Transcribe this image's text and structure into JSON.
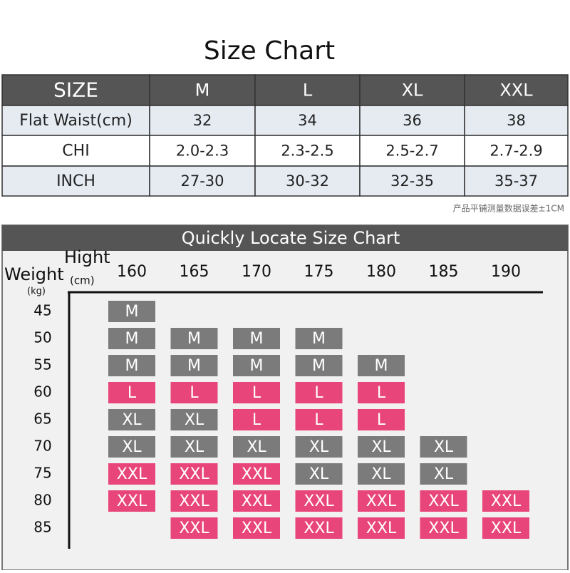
{
  "title": "Size Chart",
  "table": {
    "header": [
      "SIZE",
      "M",
      "L",
      "XL",
      "XXL"
    ],
    "rows": [
      [
        "Flat Waist(cm)",
        "32",
        "34",
        "36",
        "38"
      ],
      [
        "CHI",
        "2.0-2.3",
        "2.3-2.5",
        "2.5-2.7",
        "2.7-2.9"
      ],
      [
        "INCH",
        "27-30",
        "30-32",
        "32-35",
        "35-37"
      ]
    ]
  },
  "note": "产品平铺测量数据误差±1CM",
  "locator": {
    "title": "Quickly Locate Size Chart",
    "height_label": "Hight",
    "height_unit": "(cm)",
    "weight_label": "Weight",
    "weight_unit": "(kg)",
    "heights": [
      "160",
      "165",
      "170",
      "175",
      "180",
      "185",
      "190"
    ],
    "weights": [
      "45",
      "50",
      "55",
      "60",
      "65",
      "70",
      "75",
      "80",
      "85"
    ],
    "cells": [
      [
        "M",
        null,
        null,
        null,
        null,
        null,
        null
      ],
      [
        "M",
        "M",
        "M",
        "M",
        null,
        null,
        null
      ],
      [
        "M",
        "M",
        "M",
        "M",
        "M",
        null,
        null
      ],
      [
        "L",
        "L",
        "L",
        "L",
        "L",
        null,
        null
      ],
      [
        "XL",
        "XL",
        "L",
        "L",
        "L",
        null,
        null
      ],
      [
        "XL",
        "XL",
        "XL",
        "XL",
        "XL",
        "XL",
        null
      ],
      [
        "XXL",
        "XXL",
        "XXL",
        "XL",
        "XL",
        "XL",
        null
      ],
      [
        "XXL",
        "XXL",
        "XXL",
        "XXL",
        "XXL",
        "XXL",
        "XXL"
      ],
      [
        null,
        "XXL",
        "XXL",
        "XXL",
        "XXL",
        "XXL",
        "XXL"
      ]
    ],
    "colors": {
      "M": "#7b7b7b",
      "XL": "#7b7b7b",
      "L": "#e8457a",
      "XXL": "#e8457a"
    }
  }
}
